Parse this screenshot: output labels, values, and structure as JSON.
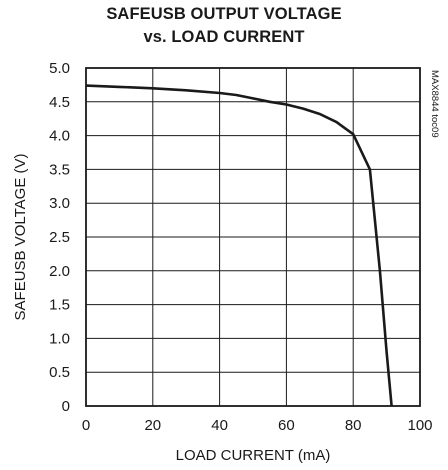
{
  "chart_data": {
    "type": "line",
    "title_line1": "SAFEUSB OUTPUT VOLTAGE",
    "title_line2": "vs. LOAD CURRENT",
    "xlabel": "LOAD CURRENT (mA)",
    "ylabel": "SAFEUSB VOLTAGE (V)",
    "side_tag": "MAX8844 toc09",
    "xlim": [
      0,
      100
    ],
    "ylim": [
      0,
      5.0
    ],
    "xticks": [
      0,
      20,
      40,
      60,
      80,
      100
    ],
    "xtick_labels": [
      "0",
      "20",
      "40",
      "60",
      "80",
      "100"
    ],
    "yticks": [
      0,
      0.5,
      1.0,
      1.5,
      2.0,
      2.5,
      3.0,
      3.5,
      4.0,
      4.5,
      5.0
    ],
    "ytick_labels": [
      "0",
      "0.5",
      "1.0",
      "1.5",
      "2.0",
      "2.5",
      "3.0",
      "3.5",
      "4.0",
      "4.5",
      "5.0"
    ],
    "grid": true,
    "series": [
      {
        "color": "#1a1a1a",
        "x": [
          0,
          10,
          20,
          30,
          40,
          45,
          50,
          55,
          60,
          65,
          70,
          75,
          80,
          85,
          88,
          90,
          91.5
        ],
        "y": [
          4.74,
          4.72,
          4.7,
          4.67,
          4.63,
          4.6,
          4.55,
          4.5,
          4.46,
          4.4,
          4.32,
          4.2,
          4.02,
          3.5,
          2.0,
          0.8,
          0.0
        ]
      }
    ]
  }
}
